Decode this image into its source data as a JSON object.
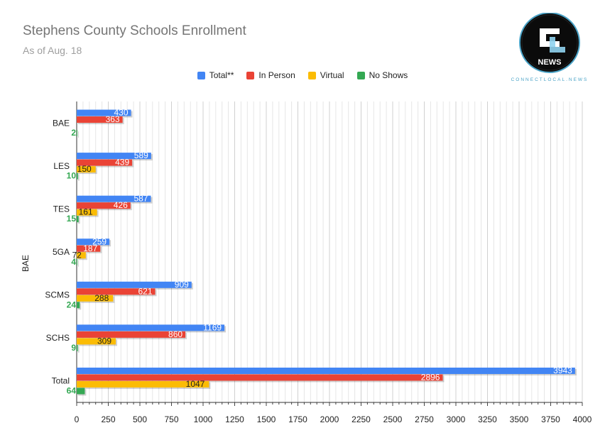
{
  "title": "Stephens County Schools Enrollment",
  "subtitle": "As of Aug. 18",
  "logo": {
    "letters": "CL",
    "word": "NEWS",
    "tagline": "CONNECTLOCAL.NEWS"
  },
  "colors": {
    "blue": "#4285f4",
    "red": "#ea4335",
    "yellow": "#fbbc04",
    "green": "#34a853"
  },
  "chart_data": {
    "type": "bar",
    "orientation": "horizontal",
    "title": "Stephens County Schools Enrollment",
    "subtitle": "As of Aug. 18",
    "ylabel": "BAE",
    "xlabel": "",
    "xlim": [
      0,
      4000
    ],
    "xticks": [
      0,
      250,
      500,
      750,
      1000,
      1250,
      1500,
      1750,
      2000,
      2250,
      2500,
      2750,
      3000,
      3250,
      3500,
      3750,
      4000
    ],
    "legend_position": "top",
    "grid": true,
    "categories": [
      "BAE",
      "LES",
      "TES",
      "5GA",
      "SCMS",
      "SCHS",
      "Total"
    ],
    "series": [
      {
        "name": "Total**",
        "color": "#4285f4",
        "values": [
          430,
          589,
          587,
          259,
          909,
          1169,
          3943
        ]
      },
      {
        "name": "In Person",
        "color": "#ea4335",
        "values": [
          363,
          439,
          426,
          187,
          621,
          860,
          2896
        ]
      },
      {
        "name": "Virtual",
        "color": "#fbbc04",
        "values": [
          null,
          150,
          161,
          72,
          288,
          309,
          1047
        ]
      },
      {
        "name": "No Shows",
        "color": "#34a853",
        "values": [
          2,
          10,
          15,
          4,
          24,
          9,
          64
        ]
      }
    ]
  }
}
